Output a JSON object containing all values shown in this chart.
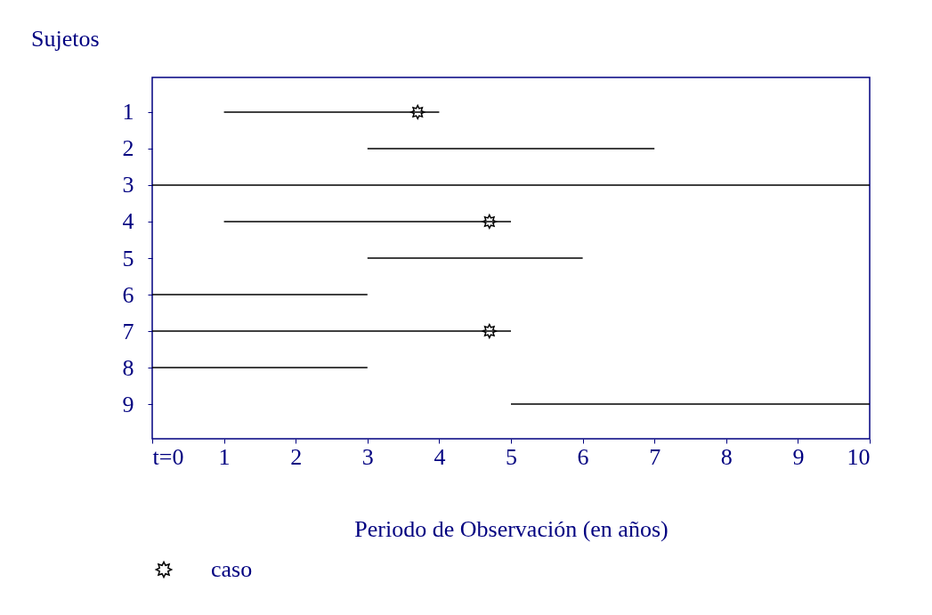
{
  "chart_data": {
    "type": "bar",
    "orientation": "horizontal",
    "title": "Sujetos",
    "xlabel": "Periodo de Observación (en años)",
    "categories": [
      "1",
      "2",
      "3",
      "4",
      "5",
      "6",
      "7",
      "8",
      "9"
    ],
    "series": [
      {
        "type": "bar",
        "color": "#000000",
        "values": [
          3,
          4,
          10,
          4,
          3,
          3,
          5,
          3,
          5
        ],
        "base": [
          1,
          3,
          0,
          1,
          3,
          0,
          0,
          0,
          5
        ]
      },
      {
        "type": "scatter",
        "name": "caso",
        "color": "#000000",
        "marker": "star",
        "values": [
          3.7,
          null,
          null,
          4.7,
          null,
          null,
          4.7,
          null,
          null
        ]
      }
    ],
    "xlim": [
      0,
      10
    ],
    "xticks": [
      {
        "value": 0,
        "label": "t=0"
      },
      1,
      2,
      3,
      4,
      5,
      6,
      7,
      8,
      9,
      10
    ],
    "grid": false,
    "legend": "bottom"
  }
}
